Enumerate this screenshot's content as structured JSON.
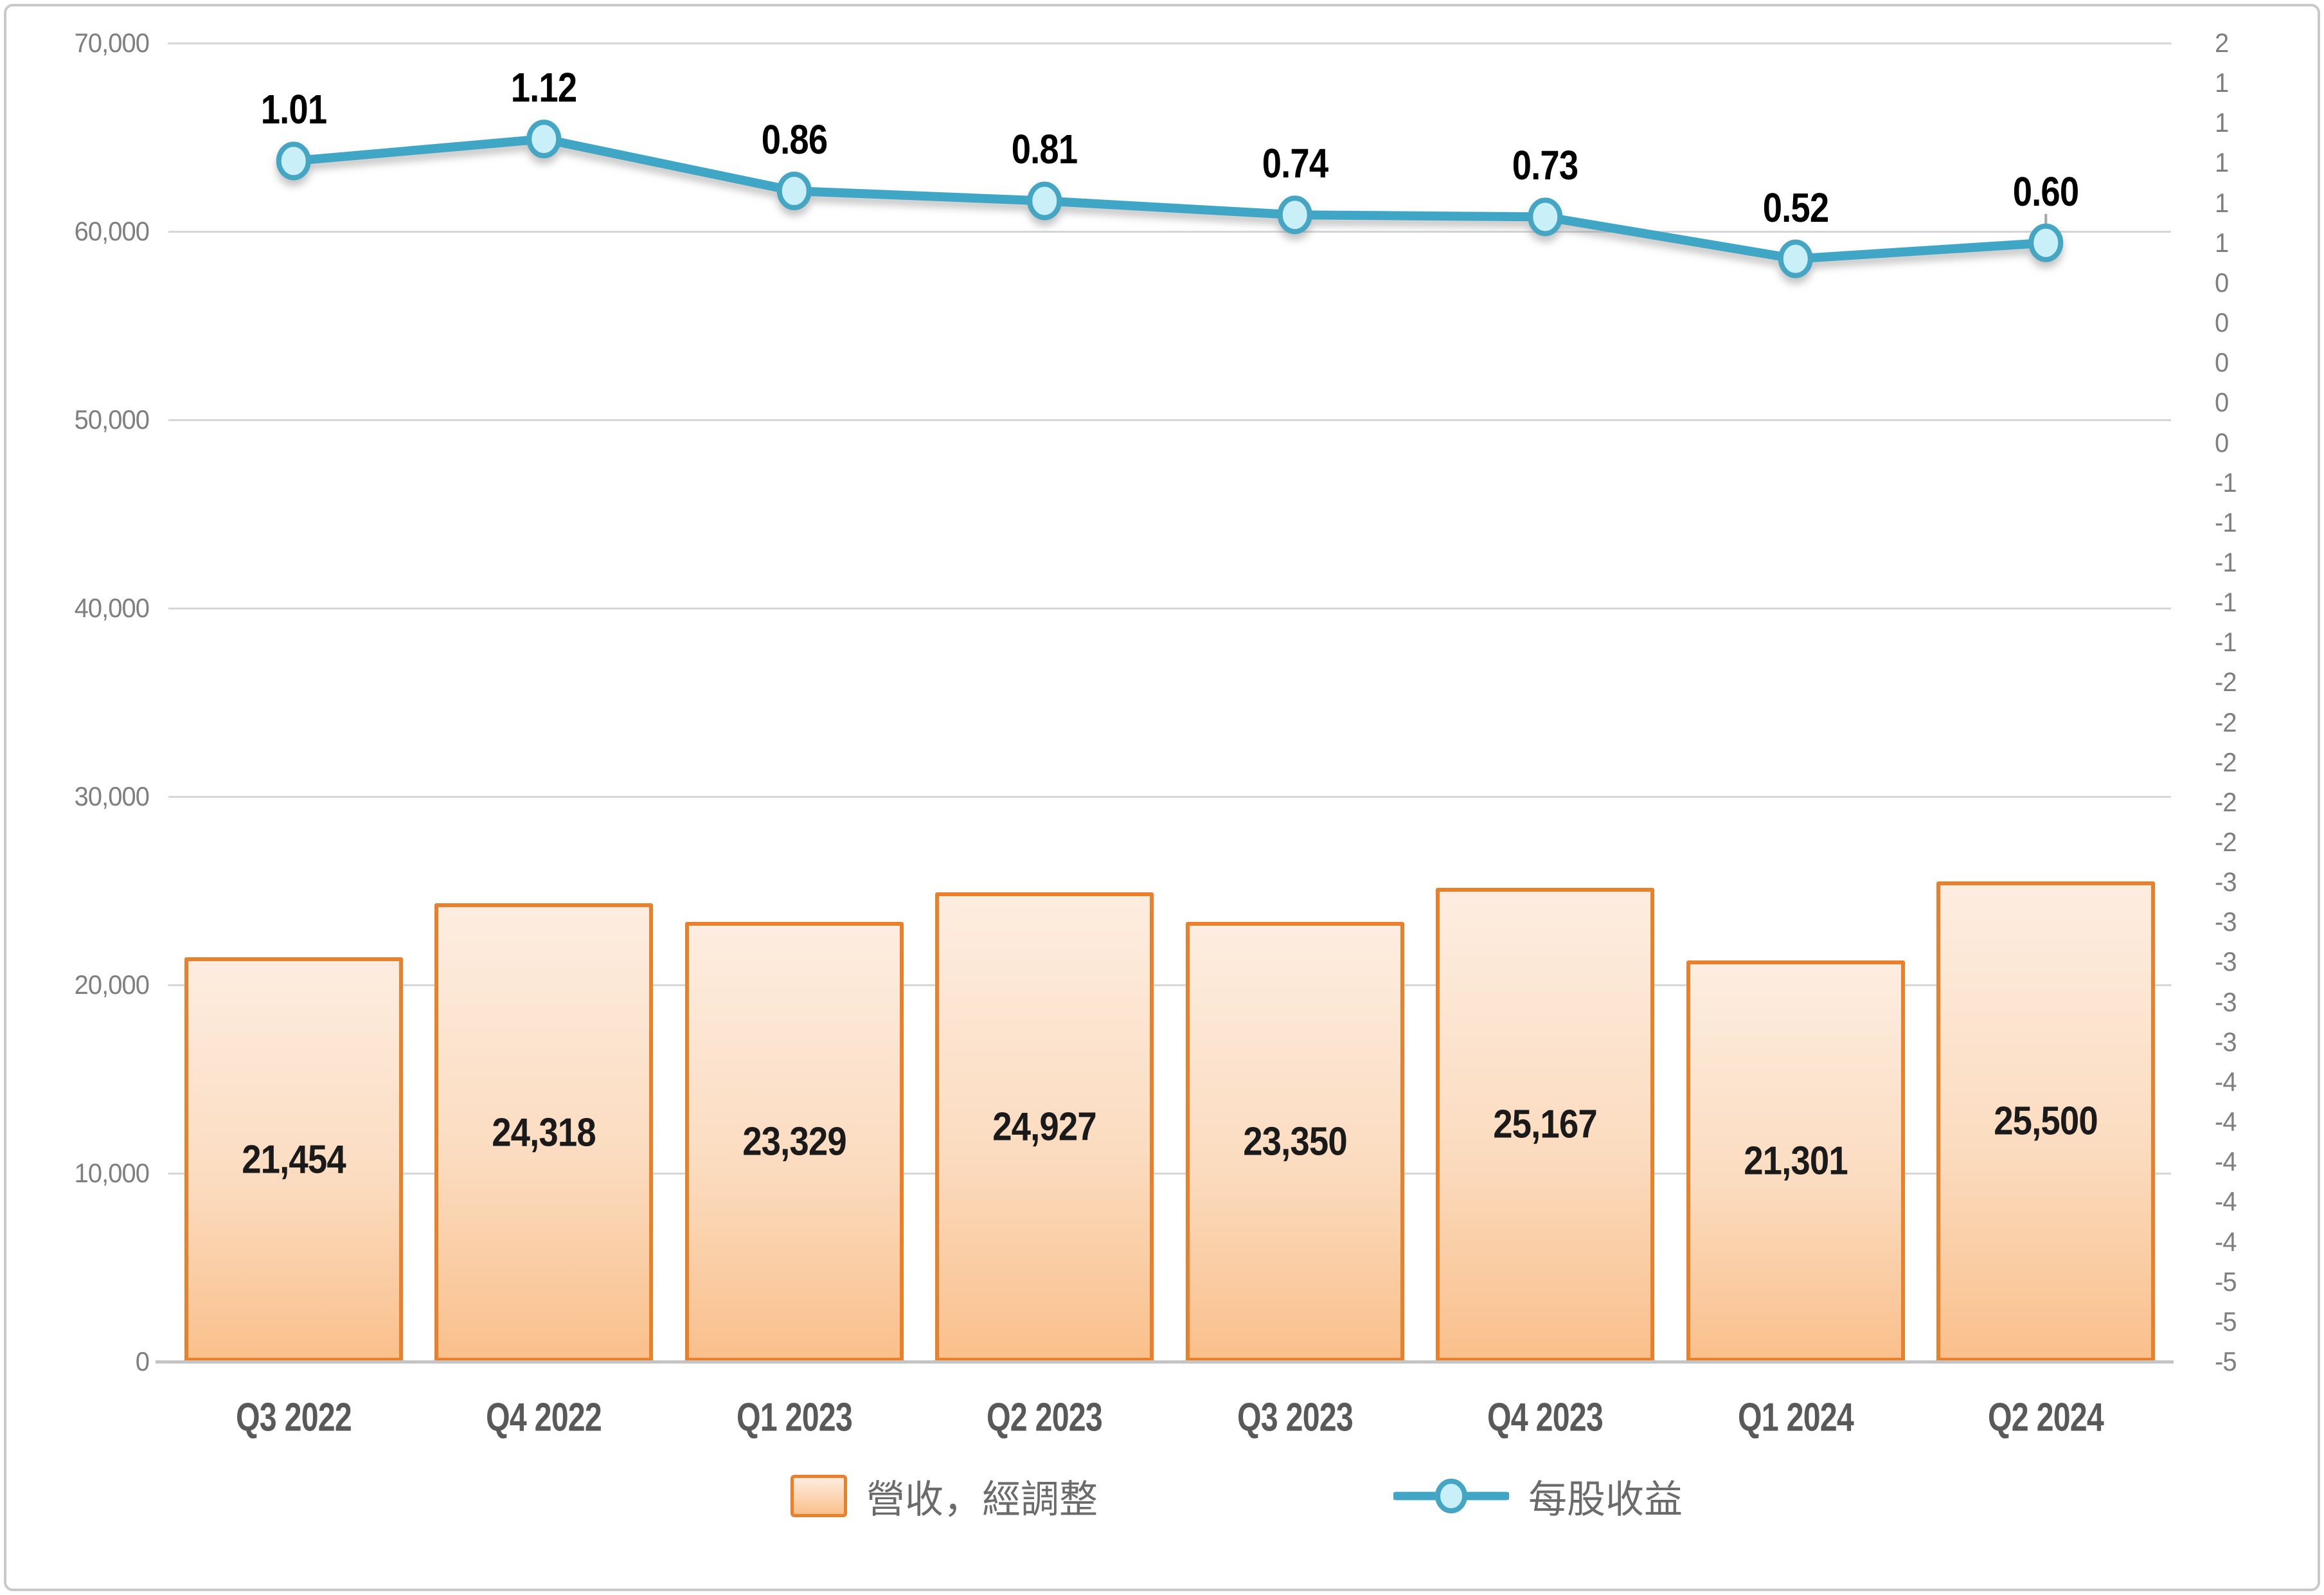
{
  "chart_data": {
    "type": "combo",
    "categories": [
      "Q3 2022",
      "Q4 2022",
      "Q1 2023",
      "Q2 2023",
      "Q3 2023",
      "Q4 2023",
      "Q1 2024",
      "Q2 2024"
    ],
    "series": [
      {
        "name": "營收，經調整",
        "type": "bar",
        "axis": "left",
        "values": [
          21454,
          24318,
          23329,
          24927,
          23350,
          25167,
          21301,
          25500
        ],
        "labels": [
          "21,454",
          "24,318",
          "23,329",
          "24,927",
          "23,350",
          "25,167",
          "21,301",
          "25,500"
        ]
      },
      {
        "name": "每股收益",
        "type": "line",
        "axis": "right",
        "values": [
          1.01,
          1.12,
          0.86,
          0.81,
          0.74,
          0.73,
          0.52,
          0.6
        ],
        "labels": [
          "1.01",
          "1.12",
          "0.86",
          "0.81",
          "0.74",
          "0.73",
          "0.52",
          "0.60"
        ],
        "whisker_point_index": 7
      }
    ],
    "left_axis": {
      "min": 0,
      "max": 70000,
      "step": 10000,
      "tick_labels": [
        "70,000",
        "60,000",
        "50,000",
        "40,000",
        "30,000",
        "20,000",
        "10,000",
        "0"
      ]
    },
    "right_axis": {
      "max": 1.6,
      "min": -5.0,
      "step": 0.2,
      "tick_labels": [
        "2",
        "1",
        "1",
        "1",
        "1",
        "1",
        "0",
        "0",
        "0",
        "0",
        "0",
        "-1",
        "-1",
        "-1",
        "-1",
        "-1",
        "-2",
        "-2",
        "-2",
        "-2",
        "-2",
        "-3",
        "-3",
        "-3",
        "-3",
        "-3",
        "-4",
        "-4",
        "-4",
        "-4",
        "-4",
        "-5",
        "-5",
        "-5"
      ]
    },
    "legend": {
      "position": "bottom",
      "items": [
        "營收，經調整",
        "每股收益"
      ]
    },
    "grid": true,
    "title": "",
    "xlabel": "",
    "ylabel": ""
  },
  "colors": {
    "bar_fill_top": "#FDEDE0",
    "bar_fill_bottom": "#FAC08C",
    "bar_border": "#E8802C",
    "line": "#41A6C5",
    "marker_fill": "#C9EFF9",
    "marker_stroke": "#45A6C3",
    "gridline": "#D6D6D6",
    "axis_line": "#C4C4C4",
    "frame": "#C9C9C9",
    "left_axis_text": "#7F7F7F",
    "right_axis_text": "#7F7F7F",
    "x_axis_text": "#595959",
    "bar_label_text": "#1A1A1A",
    "line_label_text": "#000000",
    "legend_text": "#6B6B6B",
    "whisker": "#A6A6A6"
  }
}
